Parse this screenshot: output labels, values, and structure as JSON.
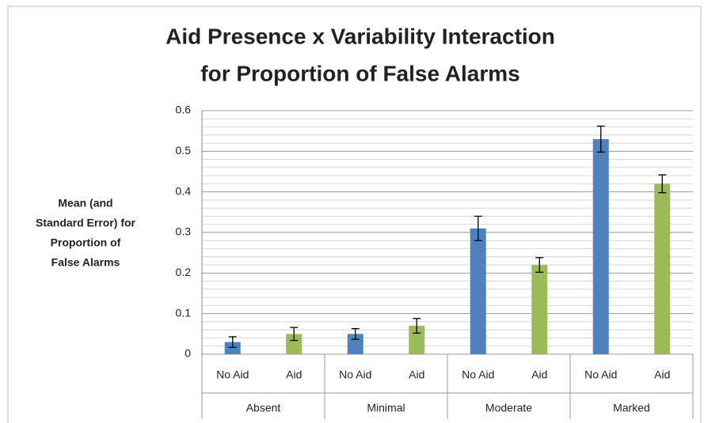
{
  "chart_data": {
    "type": "bar",
    "title": [
      "Aid Presence x Variability Interaction",
      "for Proportion of False Alarms"
    ],
    "y_label": [
      "Mean (and",
      "Standard Error) for",
      "Proportion of",
      "False Alarms"
    ],
    "categories": [
      "Absent",
      "Minimal",
      "Moderate",
      "Marked"
    ],
    "series": [
      {
        "name": "No Aid",
        "color": "#4f81bd",
        "values": [
          0.03,
          0.05,
          0.31,
          0.53
        ],
        "errors": [
          0.013,
          0.013,
          0.03,
          0.032
        ]
      },
      {
        "name": "Aid",
        "color": "#9bbb59",
        "values": [
          0.05,
          0.07,
          0.22,
          0.42
        ],
        "errors": [
          0.016,
          0.018,
          0.018,
          0.022
        ]
      }
    ],
    "ylim": [
      0,
      0.6
    ],
    "yticks": [
      0,
      0.1,
      0.2,
      0.3,
      0.4,
      0.5,
      0.6
    ],
    "yminorticks": [
      0.02,
      0.04,
      0.06,
      0.08,
      0.12,
      0.14,
      0.16,
      0.18,
      0.22,
      0.24,
      0.26,
      0.28,
      0.32,
      0.34,
      0.36,
      0.38,
      0.42,
      0.44,
      0.46,
      0.48,
      0.52,
      0.54,
      0.56,
      0.58
    ],
    "grid": true
  }
}
